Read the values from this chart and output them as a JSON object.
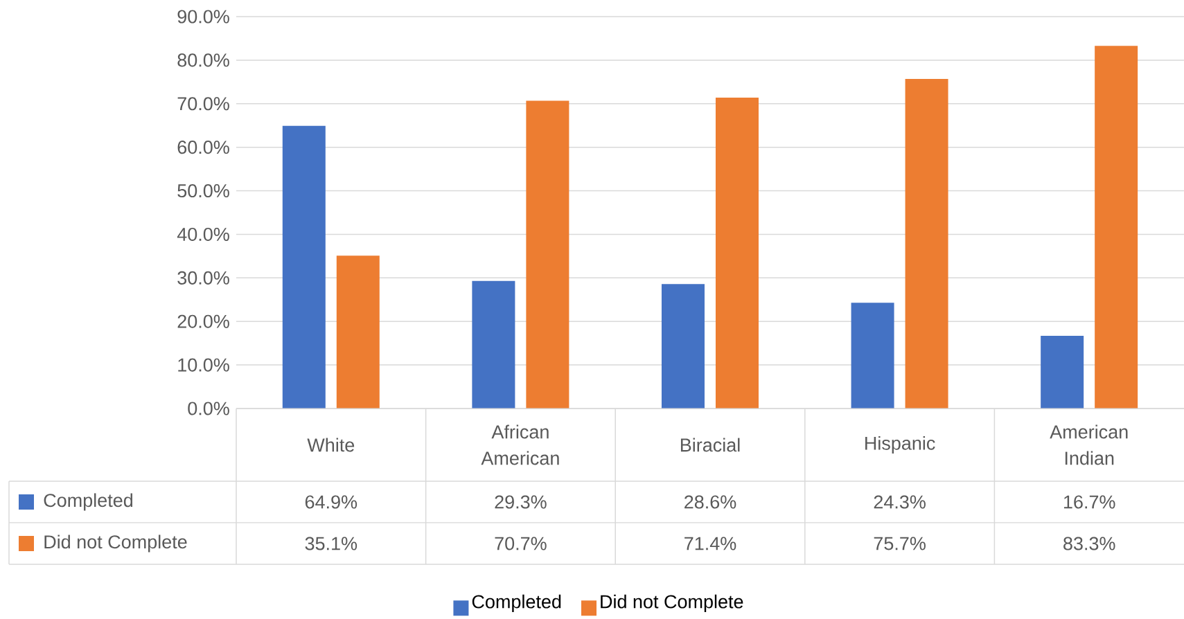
{
  "chart_data": {
    "type": "bar",
    "categories": [
      "White",
      "African American",
      "Biracial",
      "Hispanic",
      "American Indian"
    ],
    "series": [
      {
        "name": "Completed",
        "color": "#4472c4",
        "values": [
          64.9,
          29.3,
          28.6,
          24.3,
          16.7
        ],
        "value_labels": [
          "64.9%",
          "29.3%",
          "28.6%",
          "24.3%",
          "16.7%"
        ]
      },
      {
        "name": "Did not Complete",
        "color": "#ed7d31",
        "values": [
          35.1,
          70.7,
          71.4,
          75.7,
          83.3
        ],
        "value_labels": [
          "35.1%",
          "70.7%",
          "71.4%",
          "75.7%",
          "83.3%"
        ]
      }
    ],
    "ylim": [
      0,
      90
    ],
    "yticks": [
      {
        "value": 0,
        "label": "0.0%"
      },
      {
        "value": 10,
        "label": "10.0%"
      },
      {
        "value": 20,
        "label": "20.0%"
      },
      {
        "value": 30,
        "label": "30.0%"
      },
      {
        "value": 40,
        "label": "40.0%"
      },
      {
        "value": 50,
        "label": "50.0%"
      },
      {
        "value": 60,
        "label": "60.0%"
      },
      {
        "value": 70,
        "label": "70.0%"
      },
      {
        "value": 80,
        "label": "80.0%"
      },
      {
        "value": 90,
        "label": "90.0%"
      }
    ],
    "grid": "y",
    "legend": "bottom"
  }
}
